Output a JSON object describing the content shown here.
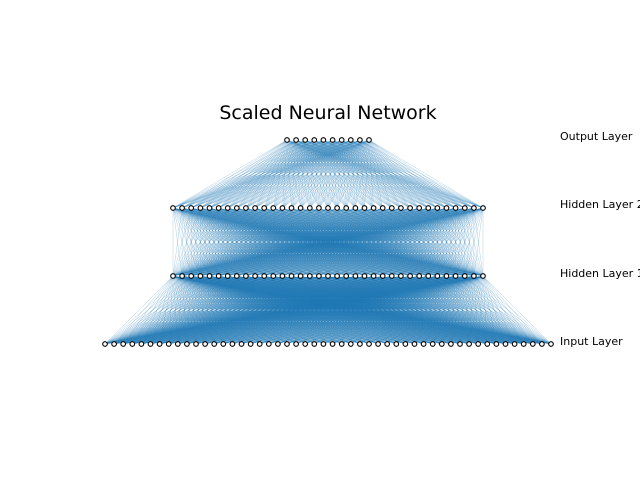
{
  "title": "Scaled Neural Network",
  "colors": {
    "edge": "#1f77b4",
    "neuron_fill": "#ffffff",
    "neuron_stroke": "#000000",
    "background": "#ffffff"
  },
  "layers": [
    {
      "label": "Input Layer",
      "neurons": 50
    },
    {
      "label": "Hidden Layer 1",
      "neurons": 35
    },
    {
      "label": "Hidden Layer 2",
      "neurons": 35
    },
    {
      "label": "Output Layer",
      "neurons": 10
    }
  ],
  "connectivity": "fully-connected"
}
